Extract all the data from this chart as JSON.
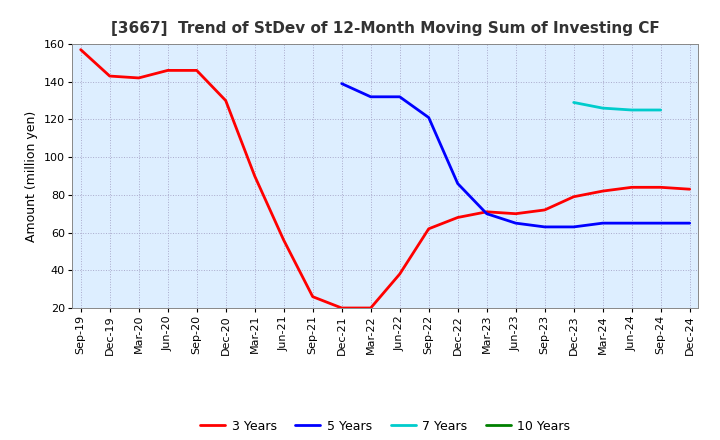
{
  "title": "[3667]  Trend of StDev of 12-Month Moving Sum of Investing CF",
  "ylabel": "Amount (million yen)",
  "ylim": [
    20,
    160
  ],
  "yticks": [
    20,
    40,
    60,
    80,
    100,
    120,
    140,
    160
  ],
  "x_labels": [
    "Sep-19",
    "Dec-19",
    "Mar-20",
    "Jun-20",
    "Sep-20",
    "Dec-20",
    "Mar-21",
    "Jun-21",
    "Sep-21",
    "Dec-21",
    "Mar-22",
    "Jun-22",
    "Sep-22",
    "Dec-22",
    "Mar-23",
    "Jun-23",
    "Sep-23",
    "Dec-23",
    "Mar-24",
    "Jun-24",
    "Sep-24",
    "Dec-24"
  ],
  "series_3y": {
    "label": "3 Years",
    "color": "#FF0000",
    "x": [
      0,
      1,
      2,
      3,
      4,
      5,
      6,
      7,
      8,
      9,
      10,
      11,
      12,
      13,
      14,
      15,
      16,
      17,
      18,
      19,
      20,
      21
    ],
    "y": [
      157,
      143,
      142,
      146,
      146,
      130,
      90,
      56,
      26,
      20,
      20,
      38,
      62,
      68,
      71,
      70,
      72,
      79,
      82,
      84,
      84,
      83
    ]
  },
  "series_5y": {
    "label": "5 Years",
    "color": "#0000FF",
    "x": [
      9,
      10,
      11,
      12,
      13,
      14,
      15,
      16,
      17,
      18,
      19,
      20,
      21
    ],
    "y": [
      139,
      132,
      132,
      121,
      86,
      70,
      65,
      63,
      63,
      65,
      65,
      65,
      65
    ]
  },
  "series_7y": {
    "label": "7 Years",
    "color": "#00CCCC",
    "x": [
      17,
      18,
      19,
      20
    ],
    "y": [
      129,
      126,
      125,
      125
    ]
  },
  "series_10y": {
    "label": "10 Years",
    "color": "#008000",
    "x": [],
    "y": []
  },
  "background_color": "#ffffff",
  "plot_bg_color": "#ddeeff",
  "grid_color": "#aaaacc",
  "title_fontsize": 11,
  "label_fontsize": 9,
  "tick_fontsize": 8,
  "legend_fontsize": 9
}
